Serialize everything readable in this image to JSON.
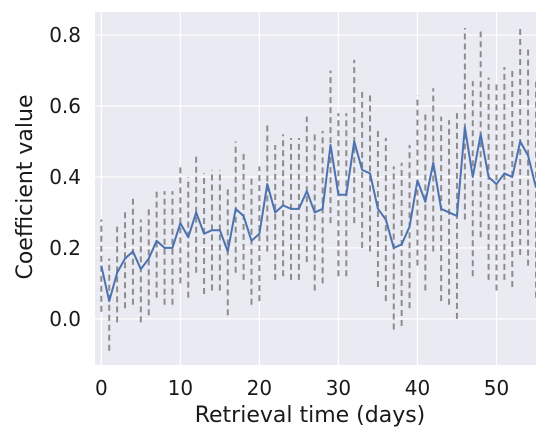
{
  "chart_data": {
    "type": "line",
    "title": "",
    "xlabel": "Retrieval time (days)",
    "ylabel": "Coefficient value",
    "xlim": [
      -0.8,
      55
    ],
    "ylim": [
      -0.13,
      0.865
    ],
    "x_ticks": [
      0,
      10,
      20,
      30,
      40,
      50
    ],
    "y_ticks": [
      0.0,
      0.2,
      0.4,
      0.6,
      0.8
    ],
    "grid": true,
    "background_color": "#eaeaf2",
    "grid_color": "#ffffff",
    "line_color": "#4c72b0",
    "interval_color": "#8c8c8c",
    "series": [
      {
        "x": [
          0,
          1,
          2,
          3,
          4,
          5,
          6,
          7,
          8,
          9,
          10,
          11,
          12,
          13,
          14,
          15,
          16,
          17,
          18,
          19,
          20,
          21,
          22,
          23,
          24,
          25,
          26,
          27,
          28,
          29,
          30,
          31,
          32,
          33,
          34,
          35,
          36,
          37,
          38,
          39,
          40,
          41,
          42,
          43,
          44,
          45,
          46,
          47,
          48,
          49,
          50,
          51,
          52,
          53,
          54,
          55
        ],
        "y": [
          0.15,
          0.05,
          0.13,
          0.17,
          0.19,
          0.14,
          0.17,
          0.22,
          0.2,
          0.2,
          0.27,
          0.23,
          0.3,
          0.24,
          0.25,
          0.25,
          0.19,
          0.31,
          0.29,
          0.22,
          0.24,
          0.38,
          0.3,
          0.32,
          0.31,
          0.31,
          0.36,
          0.3,
          0.31,
          0.49,
          0.35,
          0.35,
          0.5,
          0.42,
          0.41,
          0.31,
          0.28,
          0.2,
          0.21,
          0.26,
          0.39,
          0.33,
          0.44,
          0.31,
          0.3,
          0.29,
          0.54,
          0.4,
          0.52,
          0.4,
          0.38,
          0.41,
          0.4,
          0.5,
          0.46,
          0.37
        ],
        "lower": [
          0.02,
          -0.09,
          -0.01,
          0.03,
          0.04,
          -0.01,
          0.01,
          0.06,
          0.04,
          0.04,
          0.1,
          0.06,
          0.13,
          0.07,
          0.08,
          0.08,
          0.01,
          0.13,
          0.11,
          0.04,
          0.05,
          0.19,
          0.11,
          0.12,
          0.11,
          0.11,
          0.16,
          0.08,
          0.1,
          0.27,
          0.12,
          0.12,
          0.27,
          0.2,
          0.19,
          0.09,
          0.05,
          -0.03,
          -0.02,
          0.03,
          0.15,
          0.08,
          0.19,
          0.05,
          0.04,
          0.0,
          0.28,
          0.12,
          0.23,
          0.11,
          0.08,
          0.11,
          0.09,
          0.18,
          0.15,
          0.06
        ],
        "upper": [
          0.28,
          0.17,
          0.26,
          0.31,
          0.34,
          0.28,
          0.32,
          0.37,
          0.36,
          0.36,
          0.43,
          0.4,
          0.46,
          0.41,
          0.42,
          0.42,
          0.37,
          0.5,
          0.47,
          0.4,
          0.43,
          0.55,
          0.49,
          0.52,
          0.51,
          0.51,
          0.57,
          0.52,
          0.53,
          0.7,
          0.58,
          0.58,
          0.73,
          0.64,
          0.63,
          0.53,
          0.51,
          0.43,
          0.44,
          0.49,
          0.63,
          0.58,
          0.65,
          0.57,
          0.56,
          0.58,
          0.82,
          0.67,
          0.81,
          0.68,
          0.67,
          0.71,
          0.71,
          0.82,
          0.77,
          0.68
        ]
      }
    ]
  }
}
